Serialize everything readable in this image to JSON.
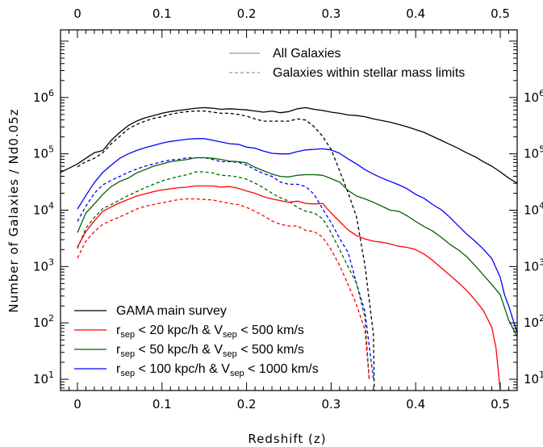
{
  "chart_data": {
    "type": "line",
    "xlabel": "Redshift (z)",
    "ylabel": "Number of Galaxies / Nd0.05z",
    "xlim": [
      -0.02,
      0.52
    ],
    "ylim_log10": [
      0.8,
      7.2
    ],
    "y_scale": "log",
    "grid": false,
    "x_ticks": [
      "0",
      "0.1",
      "0.2",
      "0.3",
      "0.4",
      "0.5"
    ],
    "x_tick_values": [
      0,
      0.1,
      0.2,
      0.3,
      0.4,
      0.5
    ],
    "y_tick_exponents": [
      1,
      2,
      3,
      4,
      5,
      6
    ],
    "y_tick_base": "10",
    "legend_style": {
      "placement": "top-right",
      "entries": [
        {
          "label": "All Galaxies",
          "dash": "solid",
          "color": "#9a9a9a"
        },
        {
          "label": "Galaxies within stellar mass limits",
          "dash": "dashed",
          "color": "#9a9a9a"
        }
      ]
    },
    "legend_sample": {
      "placement": "bottom-left",
      "entries": [
        {
          "label": "GAMA main survey",
          "color": "#000000"
        },
        {
          "label": "r_sep < 20 kpc/h & V_sep < 500 km/s",
          "color": "#ff0000",
          "parts": [
            [
              "r",
              ""
            ],
            [
              "sep",
              "sub"
            ],
            [
              " < 20 kpc/h & V",
              ""
            ],
            [
              "sep",
              "sub"
            ],
            [
              " < 500 km/s",
              ""
            ]
          ]
        },
        {
          "label": "r_sep < 50 kpc/h & V_sep < 500 km/s",
          "color": "#006400",
          "parts": [
            [
              "r",
              ""
            ],
            [
              "sep",
              "sub"
            ],
            [
              " < 50 kpc/h & V",
              ""
            ],
            [
              "sep",
              "sub"
            ],
            [
              " < 500 km/s",
              ""
            ]
          ]
        },
        {
          "label": "r_sep < 100 kpc/h & V_sep < 1000 km/s",
          "color": "#0000ff",
          "parts": [
            [
              "r",
              ""
            ],
            [
              "sep",
              "sub"
            ],
            [
              " < 100 kpc/h & V",
              ""
            ],
            [
              "sep",
              "sub"
            ],
            [
              " < 1000 km/s",
              ""
            ]
          ]
        }
      ]
    },
    "series": [
      {
        "name": "GAMA main survey",
        "color": "#000000",
        "dash": "solid",
        "x": [
          -0.02,
          0,
          0.01,
          0.02,
          0.03,
          0.04,
          0.05,
          0.06,
          0.07,
          0.08,
          0.09,
          0.1,
          0.11,
          0.12,
          0.13,
          0.14,
          0.15,
          0.16,
          0.17,
          0.18,
          0.19,
          0.2,
          0.21,
          0.22,
          0.23,
          0.24,
          0.25,
          0.26,
          0.27,
          0.28,
          0.29,
          0.3,
          0.31,
          0.32,
          0.33,
          0.34,
          0.35,
          0.36,
          0.37,
          0.38,
          0.39,
          0.4,
          0.41,
          0.42,
          0.43,
          0.44,
          0.45,
          0.46,
          0.47,
          0.48,
          0.49,
          0.5,
          0.51,
          0.52
        ],
        "y": [
          4.67,
          4.82,
          4.92,
          5.02,
          5.06,
          5.24,
          5.38,
          5.5,
          5.58,
          5.64,
          5.68,
          5.72,
          5.75,
          5.77,
          5.79,
          5.81,
          5.82,
          5.81,
          5.79,
          5.8,
          5.79,
          5.78,
          5.76,
          5.74,
          5.76,
          5.73,
          5.75,
          5.8,
          5.82,
          5.79,
          5.77,
          5.74,
          5.72,
          5.69,
          5.68,
          5.66,
          5.62,
          5.59,
          5.56,
          5.52,
          5.48,
          5.43,
          5.38,
          5.31,
          5.24,
          5.17,
          5.1,
          5.02,
          4.95,
          4.86,
          4.78,
          4.68,
          4.57,
          4.48
        ]
      },
      {
        "name": "GAMA main survey (stellar mass limited)",
        "color": "#000000",
        "dash": "dashed",
        "x": [
          0,
          0.01,
          0.02,
          0.03,
          0.04,
          0.05,
          0.06,
          0.07,
          0.08,
          0.09,
          0.1,
          0.11,
          0.12,
          0.13,
          0.14,
          0.15,
          0.16,
          0.17,
          0.18,
          0.19,
          0.2,
          0.21,
          0.22,
          0.23,
          0.24,
          0.25,
          0.26,
          0.27,
          0.28,
          0.29,
          0.3,
          0.31,
          0.32,
          0.33,
          0.34,
          0.35,
          0.351
        ],
        "y": [
          4.77,
          4.86,
          4.92,
          5.02,
          5.18,
          5.31,
          5.44,
          5.52,
          5.58,
          5.63,
          5.66,
          5.7,
          5.73,
          5.75,
          5.76,
          5.76,
          5.74,
          5.72,
          5.72,
          5.7,
          5.67,
          5.62,
          5.58,
          5.58,
          5.58,
          5.58,
          5.62,
          5.6,
          5.48,
          5.31,
          5.08,
          4.7,
          4.31,
          3.88,
          3.02,
          1.8,
          0.8
        ]
      },
      {
        "name": "r_sep < 100 kpc/h & V_sep < 1000 km/s",
        "color": "#0000ff",
        "dash": "solid",
        "x": [
          0,
          0.01,
          0.02,
          0.03,
          0.04,
          0.05,
          0.06,
          0.07,
          0.08,
          0.09,
          0.1,
          0.11,
          0.12,
          0.13,
          0.14,
          0.15,
          0.16,
          0.17,
          0.18,
          0.19,
          0.2,
          0.21,
          0.22,
          0.23,
          0.24,
          0.25,
          0.26,
          0.27,
          0.28,
          0.29,
          0.3,
          0.31,
          0.32,
          0.33,
          0.34,
          0.35,
          0.36,
          0.37,
          0.38,
          0.39,
          0.4,
          0.41,
          0.42,
          0.43,
          0.44,
          0.45,
          0.46,
          0.47,
          0.48,
          0.49,
          0.5,
          0.505,
          0.51,
          0.52
        ],
        "y": [
          4.02,
          4.26,
          4.49,
          4.67,
          4.8,
          4.92,
          5.0,
          5.06,
          5.11,
          5.15,
          5.19,
          5.22,
          5.24,
          5.26,
          5.27,
          5.27,
          5.24,
          5.21,
          5.18,
          5.17,
          5.12,
          5.1,
          5.05,
          5.01,
          5.0,
          5.0,
          5.04,
          5.07,
          5.08,
          5.09,
          5.07,
          5.01,
          4.91,
          4.82,
          4.72,
          4.64,
          4.57,
          4.51,
          4.45,
          4.38,
          4.28,
          4.21,
          4.1,
          4.01,
          3.88,
          3.73,
          3.58,
          3.45,
          3.31,
          3.14,
          2.81,
          2.5,
          2.3,
          1.82
        ]
      },
      {
        "name": "r_sep < 100 kpc/h & V_sep < 1000 km/s (stellar mass limited)",
        "color": "#0000ff",
        "dash": "dashed",
        "x": [
          0,
          0.01,
          0.02,
          0.03,
          0.04,
          0.05,
          0.06,
          0.07,
          0.08,
          0.09,
          0.1,
          0.11,
          0.12,
          0.13,
          0.14,
          0.15,
          0.16,
          0.17,
          0.18,
          0.19,
          0.2,
          0.21,
          0.22,
          0.23,
          0.24,
          0.25,
          0.26,
          0.27,
          0.28,
          0.29,
          0.3,
          0.31,
          0.32,
          0.33,
          0.34,
          0.35
        ],
        "y": [
          3.8,
          4.07,
          4.3,
          4.45,
          4.53,
          4.6,
          4.67,
          4.73,
          4.78,
          4.82,
          4.86,
          4.89,
          4.9,
          4.93,
          4.93,
          4.93,
          4.9,
          4.86,
          4.86,
          4.85,
          4.8,
          4.72,
          4.65,
          4.6,
          4.5,
          4.46,
          4.46,
          4.42,
          4.28,
          4.02,
          3.78,
          3.5,
          3.25,
          2.7,
          2.2,
          1.0
        ]
      },
      {
        "name": "r_sep < 50 kpc/h & V_sep < 500 km/s",
        "color": "#006400",
        "dash": "solid",
        "x": [
          0,
          0.01,
          0.02,
          0.03,
          0.04,
          0.05,
          0.06,
          0.07,
          0.08,
          0.09,
          0.1,
          0.11,
          0.12,
          0.13,
          0.14,
          0.15,
          0.16,
          0.17,
          0.18,
          0.19,
          0.2,
          0.21,
          0.22,
          0.23,
          0.24,
          0.25,
          0.26,
          0.27,
          0.28,
          0.29,
          0.3,
          0.31,
          0.32,
          0.33,
          0.34,
          0.35,
          0.36,
          0.37,
          0.38,
          0.39,
          0.4,
          0.41,
          0.42,
          0.43,
          0.44,
          0.45,
          0.46,
          0.47,
          0.48,
          0.49,
          0.5,
          0.51,
          0.52
        ],
        "y": [
          3.6,
          3.95,
          4.11,
          4.28,
          4.42,
          4.51,
          4.57,
          4.66,
          4.72,
          4.78,
          4.82,
          4.86,
          4.88,
          4.9,
          4.93,
          4.93,
          4.92,
          4.9,
          4.87,
          4.86,
          4.84,
          4.76,
          4.7,
          4.64,
          4.6,
          4.59,
          4.62,
          4.63,
          4.63,
          4.62,
          4.56,
          4.5,
          4.35,
          4.25,
          4.2,
          4.14,
          4.07,
          4.0,
          3.98,
          3.9,
          3.8,
          3.71,
          3.63,
          3.52,
          3.4,
          3.3,
          3.18,
          3.02,
          2.85,
          2.68,
          2.5,
          2.05,
          1.75
        ]
      },
      {
        "name": "r_sep < 50 kpc/h & V_sep < 500 km/s (stellar mass limited)",
        "color": "#006400",
        "dash": "dashed",
        "x": [
          0,
          0.01,
          0.02,
          0.03,
          0.04,
          0.05,
          0.06,
          0.07,
          0.08,
          0.09,
          0.1,
          0.11,
          0.12,
          0.13,
          0.14,
          0.15,
          0.16,
          0.17,
          0.18,
          0.19,
          0.2,
          0.21,
          0.22,
          0.23,
          0.24,
          0.25,
          0.26,
          0.27,
          0.28,
          0.29,
          0.3,
          0.31,
          0.32,
          0.33,
          0.34,
          0.345
        ],
        "y": [
          3.32,
          3.68,
          3.87,
          4.03,
          4.1,
          4.18,
          4.26,
          4.33,
          4.4,
          4.46,
          4.52,
          4.56,
          4.6,
          4.63,
          4.68,
          4.68,
          4.66,
          4.62,
          4.61,
          4.59,
          4.55,
          4.48,
          4.4,
          4.3,
          4.22,
          4.16,
          4.05,
          3.98,
          3.95,
          3.85,
          3.6,
          3.3,
          3.0,
          2.7,
          2.1,
          1.0
        ]
      },
      {
        "name": "r_sep < 20 kpc/h & V_sep < 500 km/s",
        "color": "#ff0000",
        "dash": "solid",
        "x": [
          0,
          0.01,
          0.02,
          0.03,
          0.04,
          0.05,
          0.06,
          0.07,
          0.08,
          0.09,
          0.1,
          0.11,
          0.12,
          0.13,
          0.14,
          0.15,
          0.16,
          0.17,
          0.18,
          0.19,
          0.2,
          0.21,
          0.22,
          0.23,
          0.24,
          0.25,
          0.26,
          0.27,
          0.28,
          0.29,
          0.3,
          0.31,
          0.32,
          0.33,
          0.34,
          0.35,
          0.36,
          0.37,
          0.38,
          0.39,
          0.4,
          0.41,
          0.42,
          0.43,
          0.44,
          0.45,
          0.46,
          0.47,
          0.48,
          0.49,
          0.495,
          0.5
        ],
        "y": [
          3.35,
          3.62,
          3.81,
          3.98,
          4.06,
          4.13,
          4.19,
          4.25,
          4.29,
          4.33,
          4.36,
          4.38,
          4.4,
          4.41,
          4.43,
          4.43,
          4.43,
          4.41,
          4.42,
          4.39,
          4.34,
          4.3,
          4.24,
          4.2,
          4.17,
          4.14,
          4.16,
          4.12,
          4.11,
          4.12,
          3.95,
          3.8,
          3.65,
          3.55,
          3.49,
          3.45,
          3.43,
          3.4,
          3.36,
          3.34,
          3.3,
          3.22,
          3.11,
          2.98,
          2.85,
          2.72,
          2.58,
          2.41,
          2.22,
          1.92,
          1.55,
          0.8
        ]
      },
      {
        "name": "r_sep < 20 kpc/h & V_sep < 500 km/s (stellar mass limited)",
        "color": "#ff0000",
        "dash": "dashed",
        "x": [
          0,
          0.01,
          0.02,
          0.03,
          0.04,
          0.05,
          0.06,
          0.07,
          0.08,
          0.09,
          0.1,
          0.11,
          0.12,
          0.13,
          0.14,
          0.15,
          0.16,
          0.17,
          0.18,
          0.19,
          0.2,
          0.21,
          0.22,
          0.23,
          0.24,
          0.25,
          0.26,
          0.27,
          0.28,
          0.29,
          0.3,
          0.31,
          0.32,
          0.33,
          0.34,
          0.345
        ],
        "y": [
          3.15,
          3.45,
          3.62,
          3.75,
          3.82,
          3.88,
          3.95,
          4.02,
          4.07,
          4.1,
          4.13,
          4.16,
          4.19,
          4.2,
          4.2,
          4.19,
          4.18,
          4.15,
          4.12,
          4.1,
          4.05,
          3.98,
          3.9,
          3.81,
          3.75,
          3.72,
          3.72,
          3.64,
          3.62,
          3.52,
          3.3,
          3.02,
          2.68,
          2.32,
          1.88,
          1.0
        ]
      }
    ]
  }
}
